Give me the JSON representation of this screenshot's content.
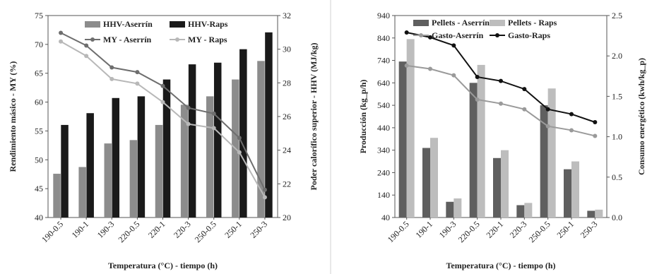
{
  "chart_data": [
    {
      "type": "bar",
      "x_label": "Temperatura (°C) - tiempo (h)",
      "y_label": "Rendimiento másico - MY (%)",
      "y2_label": "Poder calorífico superior - HHV (MJ/kg)",
      "categories": [
        "190-0.5",
        "190-1",
        "190-3",
        "220-0.5",
        "220-1",
        "220-3",
        "250-0.5",
        "250-1",
        "250-3"
      ],
      "y_ticks": [
        "40",
        "45",
        "50",
        "55",
        "60",
        "65",
        "70",
        "75"
      ],
      "y2_ticks": [
        "20",
        "22",
        "24",
        "26",
        "28",
        "30",
        "32"
      ],
      "ylim": [
        40,
        75
      ],
      "y2lim": [
        20,
        32
      ],
      "legend_position": "top",
      "bar_series": [
        {
          "name": "HHV-Aserrín",
          "color": "#8c8c8c",
          "axis": "y2",
          "values": [
            22.6,
            23.0,
            24.4,
            24.6,
            25.5,
            26.7,
            27.2,
            28.2,
            29.3
          ]
        },
        {
          "name": "HHV-Raps",
          "color": "#1a1a1a",
          "axis": "y2",
          "values": [
            25.5,
            26.2,
            27.1,
            27.2,
            28.2,
            29.1,
            29.2,
            30.0,
            31.0
          ]
        }
      ],
      "line_series": [
        {
          "name": "MY - Aserrín",
          "color": "#6e6e6e",
          "axis": "y",
          "values": [
            72.0,
            69.8,
            66.0,
            65.2,
            62.8,
            59.0,
            58.0,
            53.8,
            44.8
          ]
        },
        {
          "name": "MY - Raps",
          "color": "#b8b8b8",
          "axis": "y",
          "values": [
            70.5,
            68.0,
            64.0,
            63.2,
            60.0,
            56.2,
            55.5,
            51.3,
            43.5
          ]
        }
      ]
    },
    {
      "type": "bar",
      "x_label": "Temperatura (°C) - tiempo (h)",
      "y_label": "Producción (kg_p/h)",
      "y2_label": "Consumo energético (kwh/kg_p)",
      "categories": [
        "190-0.5",
        "190-1",
        "190-3",
        "220-0.5",
        "220-1",
        "220-3",
        "250-0.5",
        "250-1",
        "250-3"
      ],
      "y_ticks": [
        "40",
        "140",
        "240",
        "340",
        "440",
        "540",
        "640",
        "740",
        "840",
        "940"
      ],
      "y2_ticks": [
        "0.0",
        "0.5",
        "1.0",
        "1.5",
        "2.0",
        "2.5"
      ],
      "ylim": [
        40,
        940
      ],
      "y2lim": [
        0,
        2.5
      ],
      "legend_position": "top",
      "bar_series": [
        {
          "name": "Pellets - Aserrín",
          "color": "#5f5f5f",
          "axis": "y",
          "values": [
            735,
            350,
            110,
            640,
            305,
            95,
            540,
            255,
            70
          ]
        },
        {
          "name": "Pellets - Raps",
          "color": "#bdbdbd",
          "axis": "y",
          "values": [
            835,
            395,
            125,
            720,
            340,
            105,
            615,
            290,
            75
          ]
        }
      ],
      "line_series": [
        {
          "name": "Gasto-Aserrín",
          "color": "#9a9a9a",
          "axis": "y2",
          "values": [
            1.88,
            1.84,
            1.76,
            1.46,
            1.41,
            1.34,
            1.13,
            1.08,
            1.01
          ]
        },
        {
          "name": "Gasto-Raps",
          "color": "#111111",
          "axis": "y2",
          "values": [
            2.29,
            2.23,
            2.13,
            1.74,
            1.69,
            1.59,
            1.34,
            1.28,
            1.18
          ]
        }
      ]
    }
  ]
}
